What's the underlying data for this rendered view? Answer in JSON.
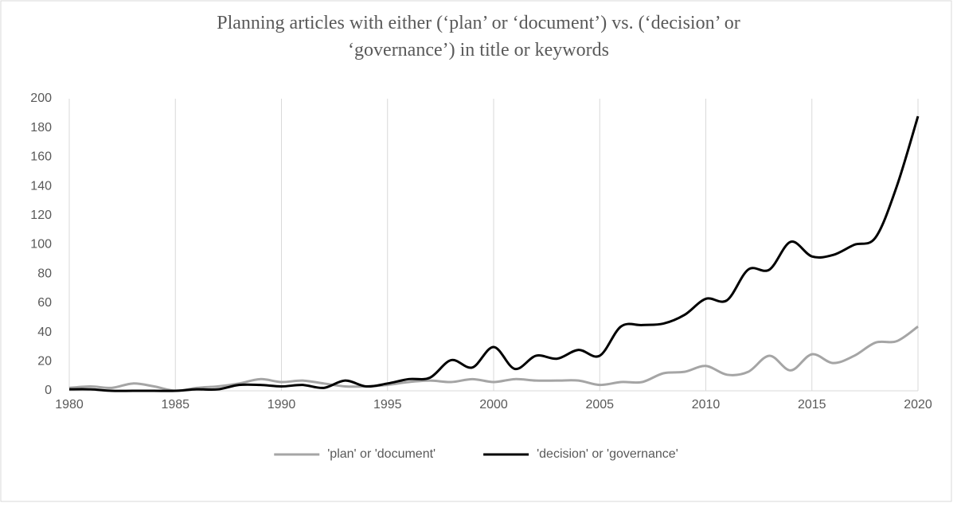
{
  "chart_data": {
    "type": "line",
    "title": "Planning articles with either (‘plan’ or ‘document’) vs. (‘decision’ or ‘governance’) in title or keywords",
    "x": [
      1980,
      1981,
      1982,
      1983,
      1984,
      1985,
      1986,
      1987,
      1988,
      1989,
      1990,
      1991,
      1992,
      1993,
      1994,
      1995,
      1996,
      1997,
      1998,
      1999,
      2000,
      2001,
      2002,
      2003,
      2004,
      2005,
      2006,
      2007,
      2008,
      2009,
      2010,
      2011,
      2012,
      2013,
      2014,
      2015,
      2016,
      2017,
      2018,
      2019,
      2020
    ],
    "series": [
      {
        "name": "'plan' or 'document'",
        "color": "#a5a5a5",
        "values": [
          2,
          3,
          2,
          5,
          3,
          0,
          2,
          3,
          5,
          8,
          6,
          7,
          5,
          3,
          3,
          4,
          6,
          7,
          6,
          8,
          6,
          8,
          7,
          7,
          7,
          4,
          6,
          6,
          12,
          13,
          17,
          11,
          13,
          24,
          14,
          25,
          19,
          24,
          33,
          34,
          44
        ]
      },
      {
        "name": "'decision' or 'governance'",
        "color": "#000000",
        "values": [
          1,
          1,
          0,
          0,
          0,
          0,
          1,
          1,
          4,
          4,
          3,
          4,
          2,
          7,
          3,
          5,
          8,
          9,
          21,
          16,
          30,
          15,
          24,
          22,
          28,
          24,
          44,
          45,
          46,
          52,
          63,
          62,
          83,
          83,
          102,
          92,
          93,
          100,
          105,
          140,
          188
        ]
      }
    ],
    "xlim": [
      1980,
      2020
    ],
    "xticks": [
      1980,
      1985,
      1990,
      1995,
      2000,
      2005,
      2010,
      2015,
      2020
    ],
    "ylim": [
      0,
      200
    ],
    "yticks": [
      0,
      20,
      40,
      60,
      80,
      100,
      120,
      140,
      160,
      180,
      200
    ],
    "grid": "x",
    "legend": "bottom",
    "smooth": true
  }
}
